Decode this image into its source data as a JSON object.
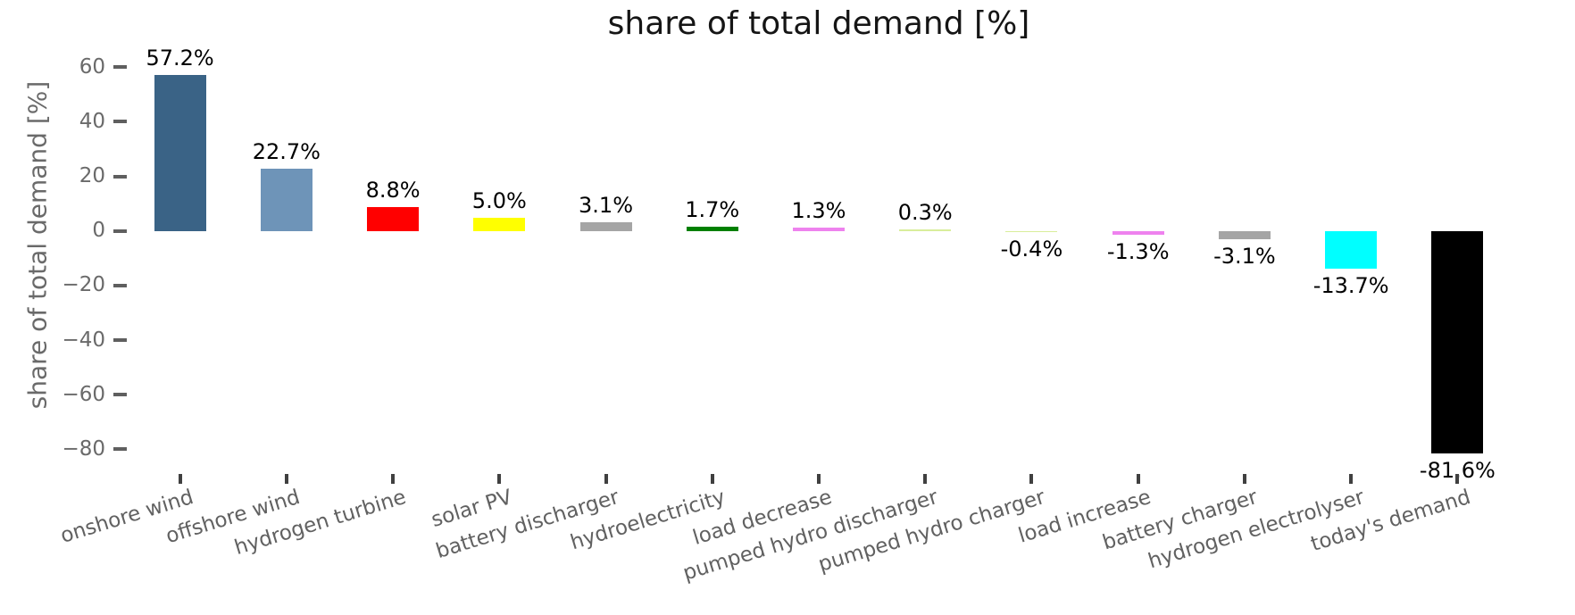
{
  "chart_data": {
    "type": "bar",
    "title": "share of total demand [%]",
    "ylabel": "share of total demand [%]",
    "xlabel": "",
    "grid": false,
    "legend_position": "none",
    "ylim": [
      65,
      -89
    ],
    "categories": [
      "onshore wind",
      "offshore wind",
      "hydrogen turbine",
      "solar PV",
      "battery discharger",
      "hydroelectricity",
      "load decrease",
      "pumped hydro discharger",
      "pumped hydro charger",
      "load increase",
      "battery charger",
      "hydrogen electrolyser",
      "today's demand"
    ],
    "values": [
      57.2,
      22.7,
      8.8,
      5.0,
      3.1,
      1.7,
      1.3,
      0.3,
      -0.4,
      -1.3,
      -3.1,
      -13.7,
      -81.6
    ],
    "bar_labels": [
      "57.2%",
      "22.7%",
      "8.8%",
      "5.0%",
      "3.1%",
      "1.7%",
      "1.3%",
      "0.3%",
      "-0.4%",
      "-1.3%",
      "-3.1%",
      "-13.7%",
      "-81.6%"
    ],
    "bar_colors": [
      "#3a6386",
      "#6e94b8",
      "#ff0000",
      "#ffff00",
      "#a5a5a5",
      "#008000",
      "#ee82ee",
      "#d9ee9b",
      "#d9ee9b",
      "#ee82ee",
      "#a5a5a5",
      "#00ffff",
      "#000000"
    ],
    "yticks": {
      "values": [
        60,
        40,
        20,
        0,
        -20,
        -40,
        -60,
        -80
      ],
      "labels": [
        "60",
        "40",
        "20",
        "0",
        "−20",
        "−40",
        "−60",
        "−80"
      ]
    },
    "style_colors": {
      "title_text": "#151515",
      "axis_text": "#6a6a6a",
      "bar_label_text": "#000000",
      "background": "#ffffff"
    }
  }
}
